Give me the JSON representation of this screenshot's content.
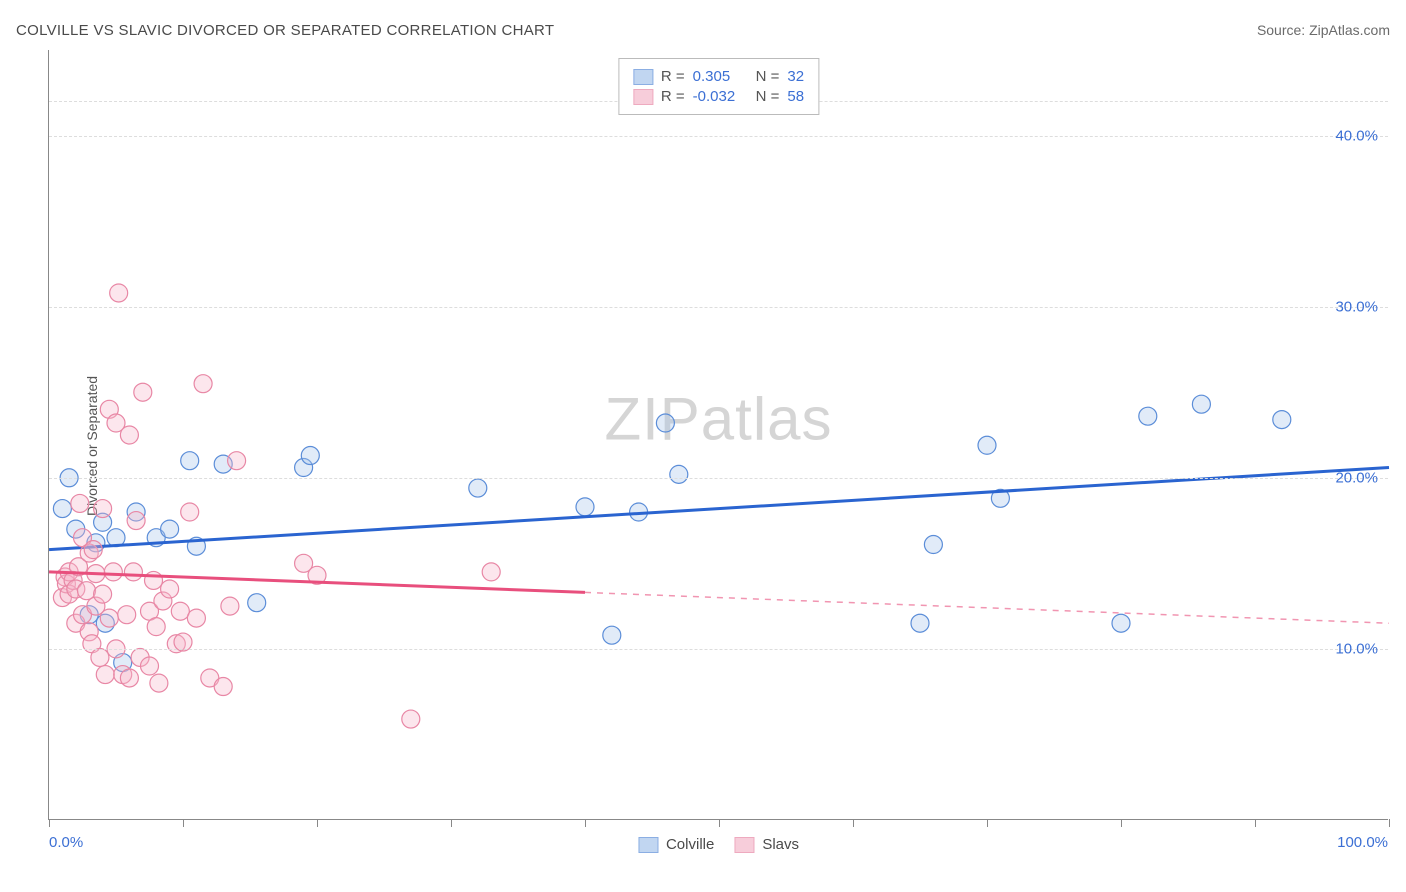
{
  "title": "COLVILLE VS SLAVIC DIVORCED OR SEPARATED CORRELATION CHART",
  "source": "Source: ZipAtlas.com",
  "ylabel": "Divorced or Separated",
  "watermark": {
    "pre": "ZIP",
    "post": "atlas"
  },
  "chart": {
    "type": "scatter",
    "xlim": [
      0,
      100
    ],
    "ylim": [
      0,
      45
    ],
    "xtick_positions": [
      0,
      10,
      20,
      30,
      40,
      50,
      60,
      70,
      80,
      90,
      100
    ],
    "xtick_labels": {
      "0": "0.0%",
      "100": "100.0%"
    },
    "ytick_positions": [
      10,
      20,
      30,
      40
    ],
    "ytick_labels": {
      "10": "10.0%",
      "20": "20.0%",
      "30": "30.0%",
      "40": "40.0%"
    },
    "grid_color": "#dddddd",
    "axis_color": "#888888",
    "xlabel_color": "#3b6fd4",
    "ylabel_color": "#3b6fd4",
    "marker_radius": 9,
    "marker_stroke_width": 1.2,
    "marker_fill_opacity": 0.35,
    "line_width": 3
  },
  "series": [
    {
      "name": "Colville",
      "color_stroke": "#5b8dd8",
      "color_fill": "#a8c5ec",
      "line_color": "#2a64d0",
      "R": "0.305",
      "N": "32",
      "trend": {
        "x1": 0,
        "y1": 15.8,
        "x2": 100,
        "y2": 20.6
      },
      "trend_solid_to": 100,
      "points": [
        [
          1,
          18.2
        ],
        [
          1.5,
          20
        ],
        [
          2,
          17
        ],
        [
          3,
          12
        ],
        [
          3.5,
          16.2
        ],
        [
          4,
          17.4
        ],
        [
          4.2,
          11.5
        ],
        [
          5,
          16.5
        ],
        [
          5.5,
          9.2
        ],
        [
          6.5,
          18
        ],
        [
          8,
          16.5
        ],
        [
          9,
          17
        ],
        [
          10.5,
          21
        ],
        [
          11,
          16
        ],
        [
          13,
          20.8
        ],
        [
          15.5,
          12.7
        ],
        [
          19,
          20.6
        ],
        [
          19.5,
          21.3
        ],
        [
          32,
          19.4
        ],
        [
          40,
          18.3
        ],
        [
          42,
          10.8
        ],
        [
          44,
          18
        ],
        [
          46,
          23.2
        ],
        [
          47,
          20.2
        ],
        [
          65,
          11.5
        ],
        [
          66,
          16.1
        ],
        [
          70,
          21.9
        ],
        [
          71,
          18.8
        ],
        [
          80,
          11.5
        ],
        [
          82,
          23.6
        ],
        [
          86,
          24.3
        ],
        [
          92,
          23.4
        ]
      ]
    },
    {
      "name": "Slavs",
      "color_stroke": "#e887a5",
      "color_fill": "#f5b8cb",
      "line_color": "#e84f7d",
      "R": "-0.032",
      "N": "58",
      "trend": {
        "x1": 0,
        "y1": 14.5,
        "x2": 100,
        "y2": 11.5
      },
      "trend_solid_to": 40,
      "points": [
        [
          1,
          13
        ],
        [
          1.2,
          14.2
        ],
        [
          1.3,
          13.8
        ],
        [
          1.5,
          14.5
        ],
        [
          1.5,
          13.2
        ],
        [
          1.8,
          14
        ],
        [
          2,
          13.5
        ],
        [
          2,
          11.5
        ],
        [
          2.2,
          14.8
        ],
        [
          2.3,
          18.5
        ],
        [
          2.5,
          16.5
        ],
        [
          2.5,
          12
        ],
        [
          2.8,
          13.4
        ],
        [
          3,
          15.6
        ],
        [
          3,
          11
        ],
        [
          3.2,
          10.3
        ],
        [
          3.3,
          15.8
        ],
        [
          3.5,
          14.4
        ],
        [
          3.5,
          12.5
        ],
        [
          3.8,
          9.5
        ],
        [
          4,
          18.2
        ],
        [
          4,
          13.2
        ],
        [
          4.2,
          8.5
        ],
        [
          4.5,
          24
        ],
        [
          4.5,
          11.8
        ],
        [
          4.8,
          14.5
        ],
        [
          5,
          23.2
        ],
        [
          5,
          10
        ],
        [
          5.2,
          30.8
        ],
        [
          5.5,
          8.5
        ],
        [
          5.8,
          12
        ],
        [
          6,
          22.5
        ],
        [
          6,
          8.3
        ],
        [
          6.3,
          14.5
        ],
        [
          6.5,
          17.5
        ],
        [
          6.8,
          9.5
        ],
        [
          7,
          25
        ],
        [
          7.5,
          12.2
        ],
        [
          7.5,
          9
        ],
        [
          7.8,
          14
        ],
        [
          8,
          11.3
        ],
        [
          8.2,
          8
        ],
        [
          8.5,
          12.8
        ],
        [
          9,
          13.5
        ],
        [
          9.5,
          10.3
        ],
        [
          9.8,
          12.2
        ],
        [
          10,
          10.4
        ],
        [
          10.5,
          18
        ],
        [
          11,
          11.8
        ],
        [
          11.5,
          25.5
        ],
        [
          12,
          8.3
        ],
        [
          13,
          7.8
        ],
        [
          13.5,
          12.5
        ],
        [
          14,
          21
        ],
        [
          19,
          15
        ],
        [
          20,
          14.3
        ],
        [
          27,
          5.9
        ],
        [
          33,
          14.5
        ]
      ]
    }
  ],
  "legend_top": {
    "R_label": "R =",
    "N_label": "N =",
    "text_color": "#555555",
    "value_color": "#3b6fd4"
  },
  "legend_bottom_text_color": "#4a4a4a"
}
